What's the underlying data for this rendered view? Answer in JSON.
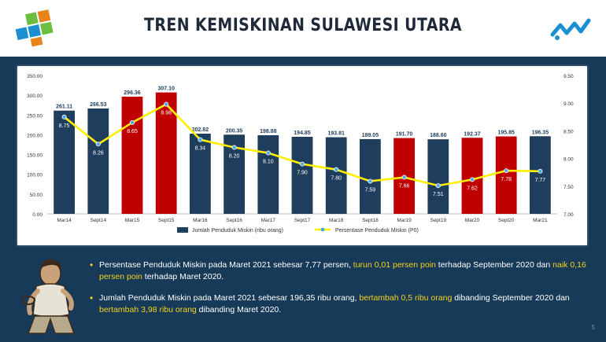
{
  "header": {
    "title": "TREN KEMISKINAN SULAWESI UTARA"
  },
  "chart_data": {
    "type": "bar",
    "categories": [
      "Mar14",
      "Sept14",
      "Mar15",
      "Sept15",
      "Mar16",
      "Sept16",
      "Mar17",
      "Sept17",
      "Mar18",
      "Sept18",
      "Mar19",
      "Sept19",
      "Mar20",
      "Sept20",
      "Mar21"
    ],
    "series": [
      {
        "name": "Jumlah Penduduk Miskin (ribu orang)",
        "type": "bar",
        "axis": "left",
        "values": [
          261.11,
          266.53,
          296.36,
          307.1,
          202.82,
          200.35,
          198.88,
          194.85,
          193.81,
          189.05,
          191.7,
          188.6,
          192.37,
          195.85,
          196.35
        ],
        "value_labels": [
          "261.11",
          "266.53",
          "296.36",
          "307.10",
          "202.82",
          "200.35",
          "198.88",
          "194.85",
          "193.81",
          "189.05",
          "191.70",
          "188.60",
          "192.37",
          "195.85",
          "196.35"
        ],
        "colors": [
          "#1f3d5c",
          "#1f3d5c",
          "#c00000",
          "#c00000",
          "#1f3d5c",
          "#1f3d5c",
          "#1f3d5c",
          "#1f3d5c",
          "#1f3d5c",
          "#1f3d5c",
          "#c00000",
          "#1f3d5c",
          "#c00000",
          "#c00000",
          "#1f3d5c"
        ]
      },
      {
        "name": "Persentase Penduduk Miskin (P0)",
        "type": "line",
        "axis": "right",
        "values": [
          8.75,
          8.26,
          8.65,
          8.98,
          8.34,
          8.2,
          8.1,
          7.9,
          7.8,
          7.59,
          7.66,
          7.51,
          7.62,
          7.78,
          7.77
        ],
        "value_labels": [
          "8.75",
          "8.26",
          "8.65",
          "8.98",
          "8.34",
          "8.20",
          "8.10",
          "7.90",
          "7.80",
          "7.59",
          "7.66",
          "7.51",
          "7.62",
          "7.78",
          "7.77"
        ],
        "color": "#ffef00",
        "marker_color": "#4aa8e6"
      }
    ],
    "ylim_left": [
      0,
      350
    ],
    "yticks_left": [
      "0.00",
      "50.00",
      "100.00",
      "150.00",
      "200.00",
      "250.00",
      "300.00",
      "350.00"
    ],
    "ylim_right": [
      7.0,
      9.5
    ],
    "yticks_right": [
      "7.00",
      "7.50",
      "8.00",
      "8.50",
      "9.00",
      "9.50"
    ],
    "grid": false,
    "legend_position": "bottom"
  },
  "bullets": [
    {
      "parts": [
        {
          "text": "Persentase Penduduk Miskin pada Maret 2021 sebesar 7,77 persen, ",
          "hl": false
        },
        {
          "text": "turun 0,01 persen poin",
          "hl": true
        },
        {
          "text": " terhadap September 2020 dan ",
          "hl": false
        },
        {
          "text": "naik 0,16 persen poin",
          "hl": true
        },
        {
          "text": " terhadap Maret 2020.",
          "hl": false
        }
      ]
    },
    {
      "parts": [
        {
          "text": "Jumlah Penduduk Miskin pada Maret 2021 sebesar  196,35 ribu orang, ",
          "hl": false
        },
        {
          "text": "bertambah 0,5 ribu orang",
          "hl": true
        },
        {
          "text": " dibanding September 2020 dan ",
          "hl": false
        },
        {
          "text": "bertambah 3,98 ribu orang",
          "hl": true
        },
        {
          "text": " dibanding Maret 2020.",
          "hl": false
        }
      ]
    }
  ],
  "footer": {
    "page_number": "5"
  },
  "colors": {
    "frame": "#163a57",
    "highlight": "#f6d21c",
    "bar_default": "#1f3d5c",
    "bar_highlight": "#c00000"
  }
}
